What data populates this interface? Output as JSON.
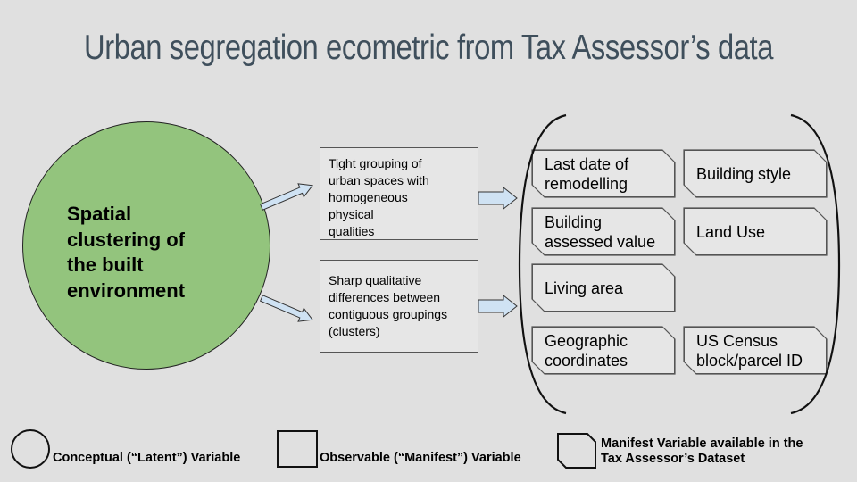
{
  "title": "Urban segregation ecometric from Tax Assessor’s data",
  "latent_variable": {
    "label_lines": [
      "Spatial",
      "clustering of",
      "the built",
      "environment"
    ],
    "fill_color": "#93c47d"
  },
  "observable_variables": [
    {
      "lines": [
        "Tight grouping of",
        "urban spaces with",
        "homogeneous",
        "physical",
        "qualities"
      ]
    },
    {
      "lines": [
        "Sharp qualitative",
        "differences between",
        "contiguous groupings",
        "(clusters)"
      ]
    }
  ],
  "manifest_variables": [
    {
      "lines": [
        "Last date of",
        "remodelling"
      ]
    },
    {
      "lines": [
        "Building style"
      ]
    },
    {
      "lines": [
        "Building",
        "assessed value"
      ]
    },
    {
      "lines": [
        "Land Use"
      ]
    },
    {
      "lines": [
        "Living area"
      ]
    },
    {
      "lines": [
        "Geographic",
        "coordinates"
      ]
    },
    {
      "lines": [
        "US Census",
        "block/parcel ID"
      ]
    }
  ],
  "legend": {
    "latent": "Conceptual (“Latent”) Variable",
    "observable": "Observable (“Manifest”) Variable",
    "tax_lines": [
      "Manifest Variable available in the",
      "Tax Assessor’s Dataset"
    ]
  },
  "colors": {
    "background": "#e0e0e0",
    "title": "#3f4f5c",
    "arrow_fill": "#cfe2f3"
  }
}
